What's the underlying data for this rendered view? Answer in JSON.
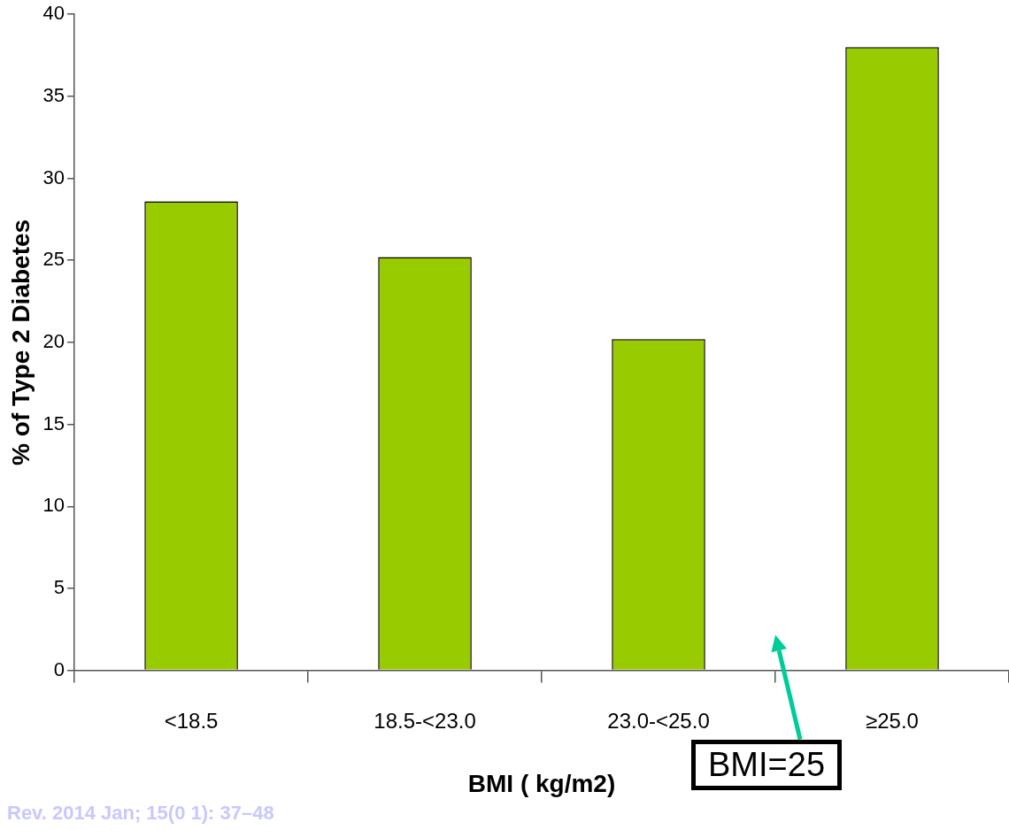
{
  "chart_data": {
    "type": "bar",
    "xlabel": "BMI ( kg/m2)",
    "ylabel": "% of Type 2 Diabetes",
    "categories": [
      "<18.5",
      "18.5-<23.0",
      "23.0-<25.0",
      "≥25.0"
    ],
    "values": [
      28.6,
      25.2,
      20.2,
      38.0
    ],
    "color": "#99cc00",
    "ylim": [
      0,
      40
    ],
    "yticks": [
      0,
      5,
      10,
      15,
      20,
      25,
      30,
      35,
      40
    ],
    "grid": false,
    "legend": false,
    "annotations": [
      "BMI=25",
      "Rev. 2014 Jan; 15(0 1): 37–48"
    ]
  }
}
